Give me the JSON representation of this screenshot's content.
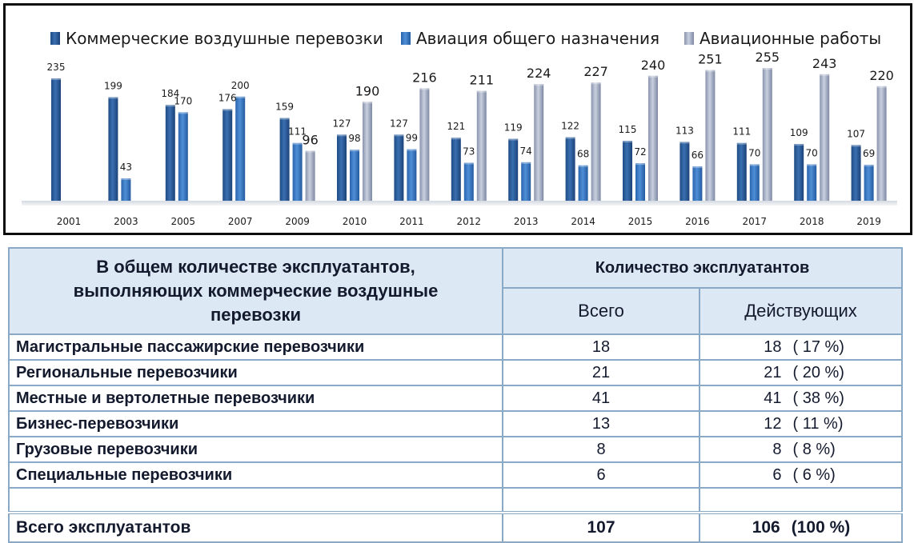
{
  "chart_data": {
    "type": "bar",
    "legend_position": "top",
    "categories": [
      "2001",
      "2003",
      "2005",
      "2007",
      "2009",
      "2010",
      "2011",
      "2012",
      "2013",
      "2014",
      "2015",
      "2016",
      "2017",
      "2018",
      "2019"
    ],
    "series": [
      {
        "name": "Коммерческие воздушные перевозки",
        "color": "#2e5d9a",
        "values": [
          235,
          199,
          184,
          176,
          159,
          127,
          127,
          121,
          119,
          122,
          115,
          113,
          111,
          109,
          107
        ]
      },
      {
        "name": "Авиация общего назначения",
        "color": "#3f78bd",
        "values": [
          null,
          43,
          170,
          200,
          111,
          98,
          99,
          73,
          74,
          68,
          72,
          66,
          70,
          70,
          69
        ]
      },
      {
        "name": "Авиационные работы",
        "color": "#a2adc4",
        "values": [
          null,
          null,
          null,
          null,
          96,
          190,
          216,
          211,
          224,
          227,
          240,
          251,
          255,
          243,
          220
        ]
      }
    ],
    "ylim": [
      0,
      270
    ],
    "grid": false
  },
  "table": {
    "header_left": [
      "В общем количестве эксплуатантов,",
      "выполняющих коммерческие воздушные",
      "перевозки"
    ],
    "header_top": "Количество эксплуатантов",
    "col_total": "Всего",
    "col_active": "Действующих",
    "rows": [
      {
        "label": "Магистральные пассажирские перевозчики",
        "total": "18",
        "active": "18",
        "pct": "( 17 %)"
      },
      {
        "label": "Региональные перевозчики",
        "total": "21",
        "active": "21",
        "pct": "( 20 %)"
      },
      {
        "label": "Местные и вертолетные перевозчики",
        "total": "41",
        "active": "41",
        "pct": "( 38 %)"
      },
      {
        "label": "Бизнес-перевозчики",
        "total": "13",
        "active": "12",
        "pct": "( 11 %)"
      },
      {
        "label": "Грузовые перевозчики",
        "total": "8",
        "active": "8",
        "pct": "( 8 %)"
      },
      {
        "label": "Специальные перевозчики",
        "total": "6",
        "active": "6",
        "pct": "( 6 %)"
      }
    ],
    "total": {
      "label": "Всего эксплуатантов",
      "total": "107",
      "active": "106",
      "pct": "(100 %)"
    }
  }
}
